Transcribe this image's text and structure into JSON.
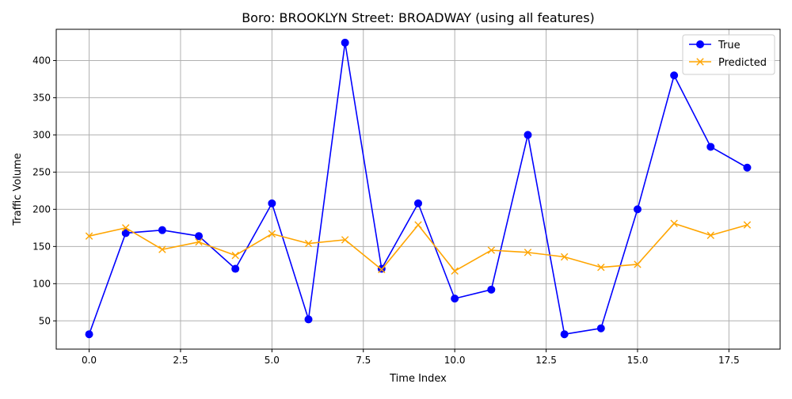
{
  "chart_data": {
    "type": "line",
    "title": "Boro: BROOKLYN Street: BROADWAY (using all features)",
    "xlabel": "Time Index",
    "ylabel": "Traffic Volume",
    "xlim": [
      -0.9,
      18.9
    ],
    "ylim": [
      12,
      442
    ],
    "x_ticks": [
      0.0,
      2.5,
      5.0,
      7.5,
      10.0,
      12.5,
      15.0,
      17.5
    ],
    "x_tick_labels": [
      "0.0",
      "2.5",
      "5.0",
      "7.5",
      "10.0",
      "12.5",
      "15.0",
      "17.5"
    ],
    "y_ticks": [
      50,
      100,
      150,
      200,
      250,
      300,
      350,
      400
    ],
    "y_tick_labels": [
      "50",
      "100",
      "150",
      "200",
      "250",
      "300",
      "350",
      "400"
    ],
    "grid": true,
    "legend_position": "top-right",
    "x": [
      0,
      1,
      2,
      3,
      4,
      5,
      6,
      7,
      8,
      9,
      10,
      11,
      12,
      13,
      14,
      15,
      16,
      17,
      18
    ],
    "series": [
      {
        "name": "True",
        "color": "#0000ff",
        "marker": "circle",
        "values": [
          32,
          168,
          172,
          164,
          120,
          208,
          52,
          424,
          120,
          208,
          80,
          92,
          300,
          32,
          40,
          200,
          380,
          284,
          256
        ]
      },
      {
        "name": "Predicted",
        "color": "#ffa500",
        "marker": "x",
        "values": [
          164,
          175,
          146,
          156,
          138,
          167,
          154,
          159,
          119,
          179,
          117,
          145,
          142,
          136,
          122,
          126,
          181,
          165,
          179
        ]
      }
    ]
  }
}
